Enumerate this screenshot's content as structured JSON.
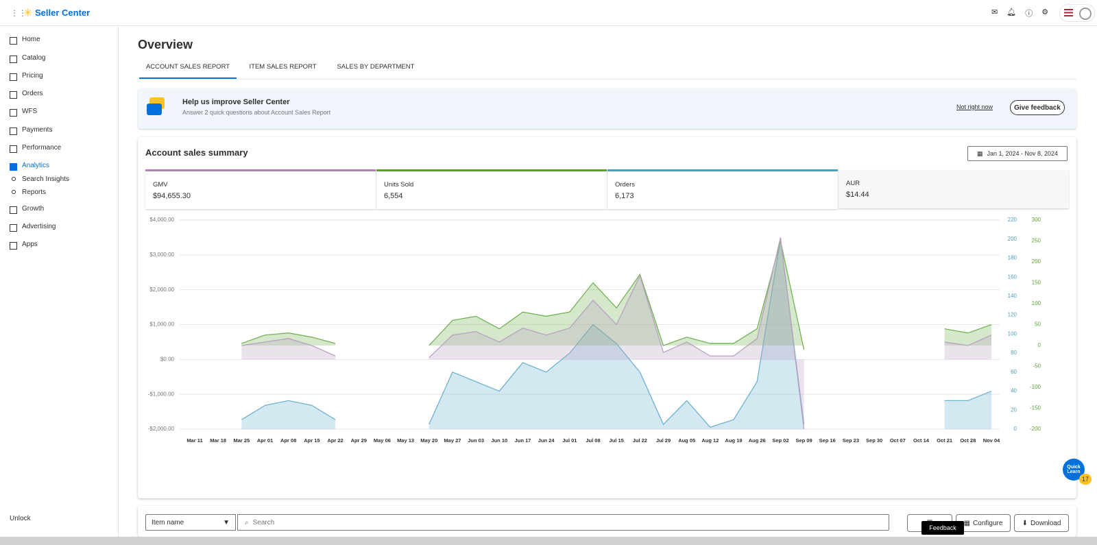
{
  "header": {
    "brand": "Seller Center"
  },
  "sidebar": {
    "items": [
      "Home",
      "Catalog",
      "Pricing",
      "Orders",
      "WFS",
      "Payments",
      "Performance",
      "Analytics",
      "Search Insights",
      "Reports",
      "Growth",
      "Advertising",
      "Apps"
    ],
    "active": "Analytics",
    "footer": "Unlock"
  },
  "page": {
    "title": "Overview",
    "tabs": [
      "ACCOUNT SALES REPORT",
      "ITEM SALES REPORT",
      "SALES BY DEPARTMENT"
    ]
  },
  "banner": {
    "title": "Help us improve Seller Center",
    "text": "Answer 2 quick questions about Account Sales Report",
    "link": "Not right now",
    "button": "Give feedback"
  },
  "summary": {
    "title": "Account sales summary",
    "date_range": "Jan 1, 2024 - Nov 8, 2024",
    "cards": [
      {
        "label": "GMV",
        "value": "$94,655.30",
        "color": "#b083b0"
      },
      {
        "label": "Units Sold",
        "value": "6,554",
        "color": "#5a9e2f"
      },
      {
        "label": "Orders",
        "value": "6,173",
        "color": "#4d9ec4"
      },
      {
        "label": "AUR",
        "value": "$14.44",
        "color": null
      }
    ]
  },
  "chart_data": {
    "type": "area",
    "categories": [
      "Mar 11",
      "Mar 18",
      "Mar 25",
      "Apr 01",
      "Apr 08",
      "Apr 15",
      "Apr 22",
      "Apr 29",
      "May 06",
      "May 13",
      "May 20",
      "May 27",
      "Jun 03",
      "Jun 10",
      "Jun 17",
      "Jun 24",
      "Jul 01",
      "Jul 08",
      "Jul 15",
      "Jul 22",
      "Jul 29",
      "Aug 05",
      "Aug 12",
      "Aug 19",
      "Aug 26",
      "Sep 02",
      "Sep 09",
      "Sep 16",
      "Sep 23",
      "Sep 30",
      "Oct 07",
      "Oct 14",
      "Oct 21",
      "Oct 28",
      "Nov 04"
    ],
    "series": [
      {
        "name": "GMV",
        "color": "#b9a1bf",
        "axis": "y",
        "values": [
          null,
          null,
          400,
          500,
          600,
          400,
          100,
          null,
          null,
          null,
          50,
          700,
          800,
          500,
          900,
          700,
          900,
          1700,
          1000,
          2400,
          200,
          500,
          100,
          100,
          600,
          3500,
          -2000,
          null,
          null,
          null,
          null,
          null,
          500,
          400,
          700
        ]
      },
      {
        "name": "Units Sold",
        "color": "#74b256",
        "axis": "y2",
        "values": [
          null,
          null,
          5,
          25,
          30,
          20,
          5,
          null,
          null,
          null,
          0,
          60,
          70,
          40,
          80,
          70,
          80,
          150,
          90,
          170,
          0,
          20,
          5,
          5,
          40,
          250,
          -10,
          null,
          null,
          null,
          null,
          null,
          40,
          30,
          50
        ]
      },
      {
        "name": "Orders",
        "color": "#6cb2d0",
        "axis": "y3",
        "values": [
          null,
          null,
          10,
          25,
          30,
          25,
          10,
          null,
          null,
          null,
          5,
          60,
          50,
          40,
          70,
          60,
          80,
          110,
          90,
          60,
          5,
          30,
          2,
          10,
          50,
          200,
          5,
          null,
          null,
          null,
          null,
          null,
          30,
          30,
          40
        ]
      }
    ],
    "ylim": [
      -2000,
      4000
    ],
    "yticks": [
      {
        "value": -2000,
        "label": "-$2,000.00"
      },
      {
        "value": -1000,
        "label": "-$1,000.00"
      },
      {
        "value": 0,
        "label": "$0.00"
      },
      {
        "value": 1000,
        "label": "$1,000.00"
      },
      {
        "value": 2000,
        "label": "$2,000.00"
      },
      {
        "value": 3000,
        "label": "$3,000.00"
      },
      {
        "value": 4000,
        "label": "$4,000.00"
      }
    ],
    "y3lim": [
      0,
      220
    ],
    "y3ticks": [
      0,
      20,
      40,
      60,
      80,
      100,
      120,
      140,
      160,
      180,
      200,
      220
    ],
    "y2lim": [
      -200,
      300
    ],
    "y2ticks": [
      -200,
      -150,
      -100,
      -50,
      0,
      50,
      100,
      150,
      200,
      250,
      300
    ],
    "grid": true
  },
  "toolbar": {
    "dropdown": "Item name",
    "search_placeholder": "Search",
    "buttons": [
      "Configure",
      "Download"
    ],
    "tooltip": "Feedback"
  },
  "quick_learn": {
    "label": "Quick Learn",
    "badge": "17"
  }
}
